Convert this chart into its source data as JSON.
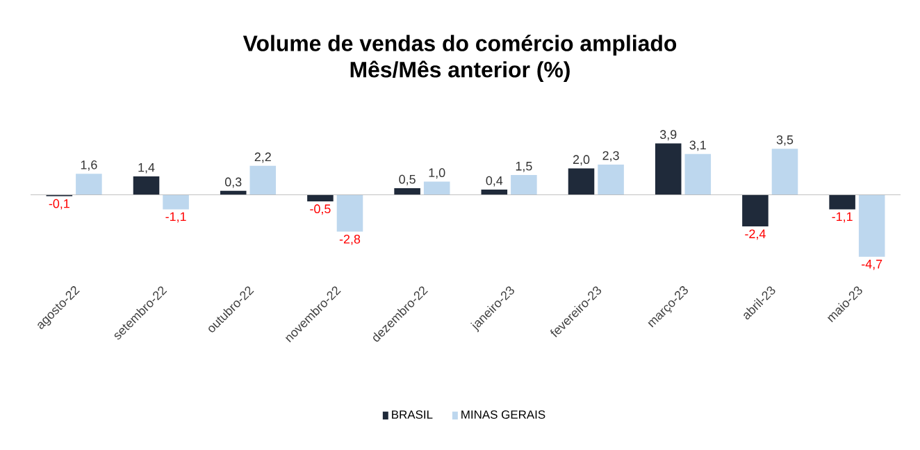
{
  "chart_data": {
    "type": "bar",
    "title": "Volume de vendas do comércio ampliado",
    "subtitle": "Mês/Mês anterior (%)",
    "categories": [
      "agosto-22",
      "setembro-22",
      "outubro-22",
      "novembro-22",
      "dezembro-22",
      "janeiro-23",
      "fevereiro-23",
      "março-23",
      "abril-23",
      "maio-23"
    ],
    "series": [
      {
        "name": "BRASIL",
        "color": "#1f2a3a",
        "values": [
          -0.1,
          1.4,
          0.3,
          -0.5,
          0.5,
          0.4,
          2.0,
          3.9,
          -2.4,
          -1.1
        ],
        "value_labels": [
          "-0,1",
          "1,4",
          "0,3",
          "-0,5",
          "0,5",
          "0,4",
          "2,0",
          "3,9",
          "-2,4",
          "-1,1"
        ]
      },
      {
        "name": "MINAS GERAIS",
        "color": "#bdd7ee",
        "values": [
          1.6,
          -1.1,
          2.2,
          -2.8,
          1.0,
          1.5,
          2.3,
          3.1,
          3.5,
          -4.7
        ],
        "value_labels": [
          "1,6",
          "-1,1",
          "2,2",
          "-2,8",
          "1,0",
          "1,5",
          "2,3",
          "3,1",
          "3,5",
          "-4,7"
        ]
      }
    ],
    "legend": "bottom"
  }
}
